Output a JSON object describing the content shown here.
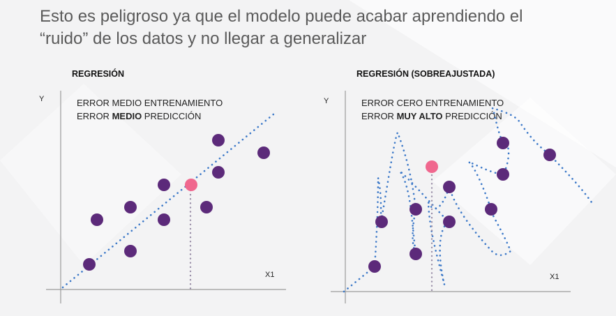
{
  "headline": {
    "line1": "Esto es peligroso ya que el modelo puede acabar aprendiendo el",
    "line2": "“ruido” de los datos y no llegar a generalizar"
  },
  "colors": {
    "point": "#5c2a7a",
    "highlight": "#f0678e",
    "fit_line": "#3b78c8",
    "guide_line": "#9a8fa8",
    "axis": "#9a9a9a"
  },
  "left_panel": {
    "title": "REGRESIÓN",
    "y_label": "Y",
    "x_label": "X1",
    "error_train": "ERROR MEDIO ENTRENAMIENTO",
    "error_pred_prefix": "ERROR ",
    "error_pred_bold": "MEDIO",
    "error_pred_suffix": " PREDICCIÓN"
  },
  "right_panel": {
    "title": "REGRESIÓN (SOBREAJUSTADA)",
    "y_label": "Y",
    "x_label": "X1",
    "error_train": "ERROR CERO ENTRENAMIENTO",
    "error_pred_prefix": "ERROR ",
    "error_pred_bold": "MUY ALTO",
    "error_pred_suffix": " PREDICCIÓN"
  }
}
